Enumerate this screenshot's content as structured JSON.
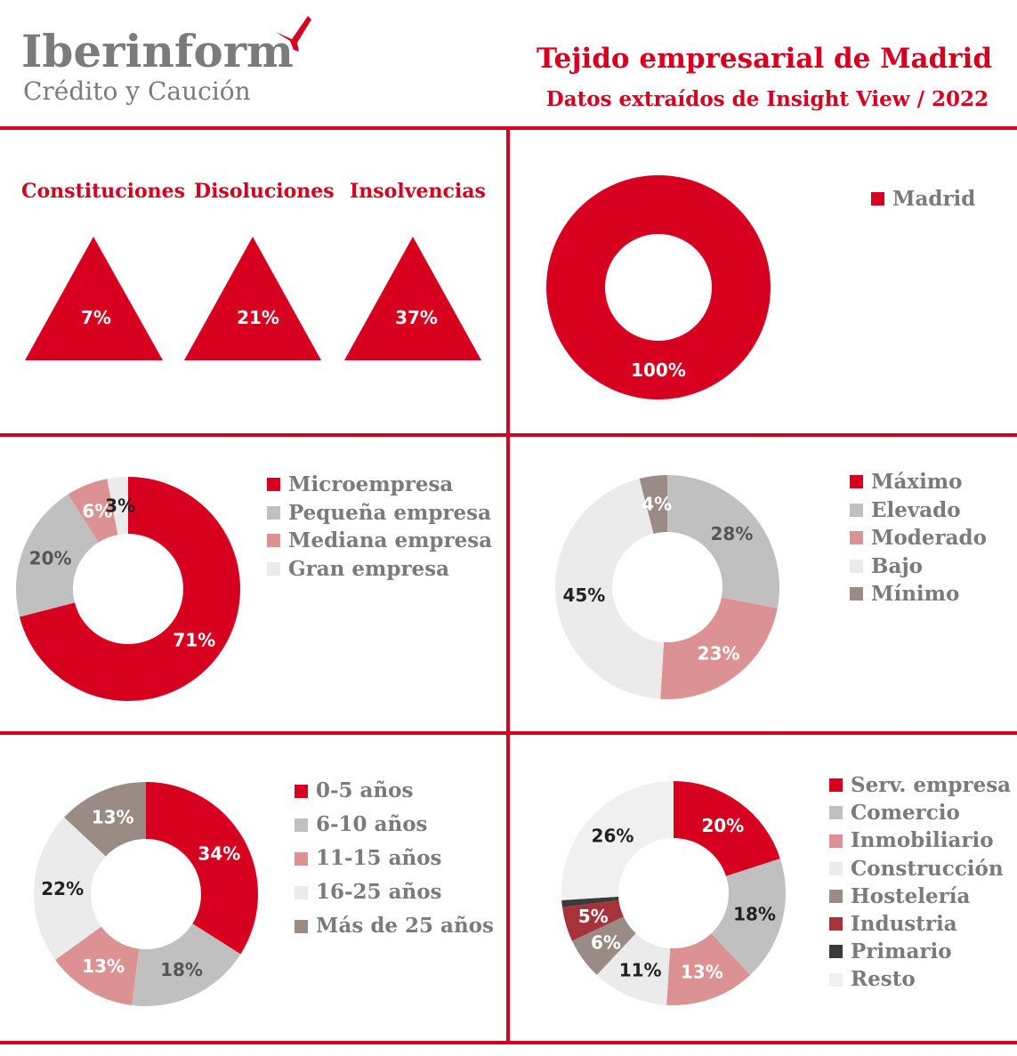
{
  "header": {
    "logo_name": "Iberinform",
    "logo_sub": "Crédito y Caución",
    "title": "Tejido empresarial de Madrid",
    "subtitle": "Datos extraídos de Insight View / 2022"
  },
  "colors": {
    "accent": "#d7001f",
    "gray_text": "#7b7b7b",
    "light_gray": "#c0c0c0",
    "pink": "#dc9292",
    "very_light": "#ebebeb",
    "brown": "#9b8b85",
    "dark_red": "#a6323a",
    "dark": "#3a3a3a"
  },
  "chart_data": [
    {
      "type": "triangle-indicators",
      "labels": [
        "Constituciones",
        "Disoluciones",
        "Insolvencias"
      ],
      "values": [
        "7%",
        "21%",
        "37%"
      ]
    },
    {
      "type": "pie",
      "donut": true,
      "series": [
        {
          "name": "Madrid",
          "value": 100,
          "label": "100%",
          "color": "#d7001f",
          "text_color": "#ffffff"
        }
      ]
    },
    {
      "type": "pie",
      "donut": true,
      "series": [
        {
          "name": "Microempresa",
          "value": 71,
          "label": "71%",
          "color": "#d7001f",
          "text_color": "#ffffff"
        },
        {
          "name": "Pequeña empresa",
          "value": 20,
          "label": "20%",
          "color": "#c0c0c0",
          "text_color": "#555555"
        },
        {
          "name": "Mediana empresa",
          "value": 6,
          "label": "6%",
          "color": "#dc9292",
          "text_color": "#ffffff"
        },
        {
          "name": "Gran empresa",
          "value": 3,
          "label": "3%",
          "color": "#ebebeb",
          "text_color": "#222222"
        }
      ]
    },
    {
      "type": "pie",
      "donut": true,
      "series": [
        {
          "name": "Máximo",
          "value": 0,
          "label": "",
          "color": "#d7001f",
          "text_color": "#ffffff"
        },
        {
          "name": "Elevado",
          "value": 28,
          "label": "28%",
          "color": "#c0c0c0",
          "text_color": "#555555"
        },
        {
          "name": "Moderado",
          "value": 23,
          "label": "23%",
          "color": "#dc9292",
          "text_color": "#ffffff"
        },
        {
          "name": "Bajo",
          "value": 45,
          "label": "45%",
          "color": "#ebebeb",
          "text_color": "#222222"
        },
        {
          "name": "Mínimo",
          "value": 4,
          "label": "4%",
          "color": "#9b8b85",
          "text_color": "#ffffff"
        }
      ]
    },
    {
      "type": "pie",
      "donut": true,
      "series": [
        {
          "name": "0-5 años",
          "value": 34,
          "label": "34%",
          "color": "#d7001f",
          "text_color": "#ffffff"
        },
        {
          "name": "6-10 años",
          "value": 18,
          "label": "18%",
          "color": "#c0c0c0",
          "text_color": "#555555"
        },
        {
          "name": "11-15 años",
          "value": 13,
          "label": "13%",
          "color": "#dc9292",
          "text_color": "#ffffff"
        },
        {
          "name": "16-25 años",
          "value": 22,
          "label": "22%",
          "color": "#ebebeb",
          "text_color": "#222222"
        },
        {
          "name": "Más de 25 años",
          "value": 13,
          "label": "13%",
          "color": "#9b8b85",
          "text_color": "#ffffff"
        }
      ]
    },
    {
      "type": "pie",
      "donut": true,
      "series": [
        {
          "name": "Serv. empresa",
          "value": 20,
          "label": "20%",
          "color": "#d7001f",
          "text_color": "#ffffff"
        },
        {
          "name": "Comercio",
          "value": 18,
          "label": "18%",
          "color": "#c0c0c0",
          "text_color": "#222222"
        },
        {
          "name": "Inmobiliario",
          "value": 13,
          "label": "13%",
          "color": "#dc9292",
          "text_color": "#ffffff"
        },
        {
          "name": "Construcción",
          "value": 11,
          "label": "11%",
          "color": "#ebebeb",
          "text_color": "#222222"
        },
        {
          "name": "Hostelería",
          "value": 6,
          "label": "6%",
          "color": "#9b8b85",
          "text_color": "#ffffff"
        },
        {
          "name": "Industria",
          "value": 5,
          "label": "5%",
          "color": "#a6323a",
          "text_color": "#ffffff"
        },
        {
          "name": "Primario",
          "value": 1,
          "label": "",
          "color": "#3a3a3a",
          "text_color": "#ffffff"
        },
        {
          "name": "Resto",
          "value": 26,
          "label": "26%",
          "color": "#f0f0f0",
          "text_color": "#222222"
        }
      ]
    }
  ]
}
